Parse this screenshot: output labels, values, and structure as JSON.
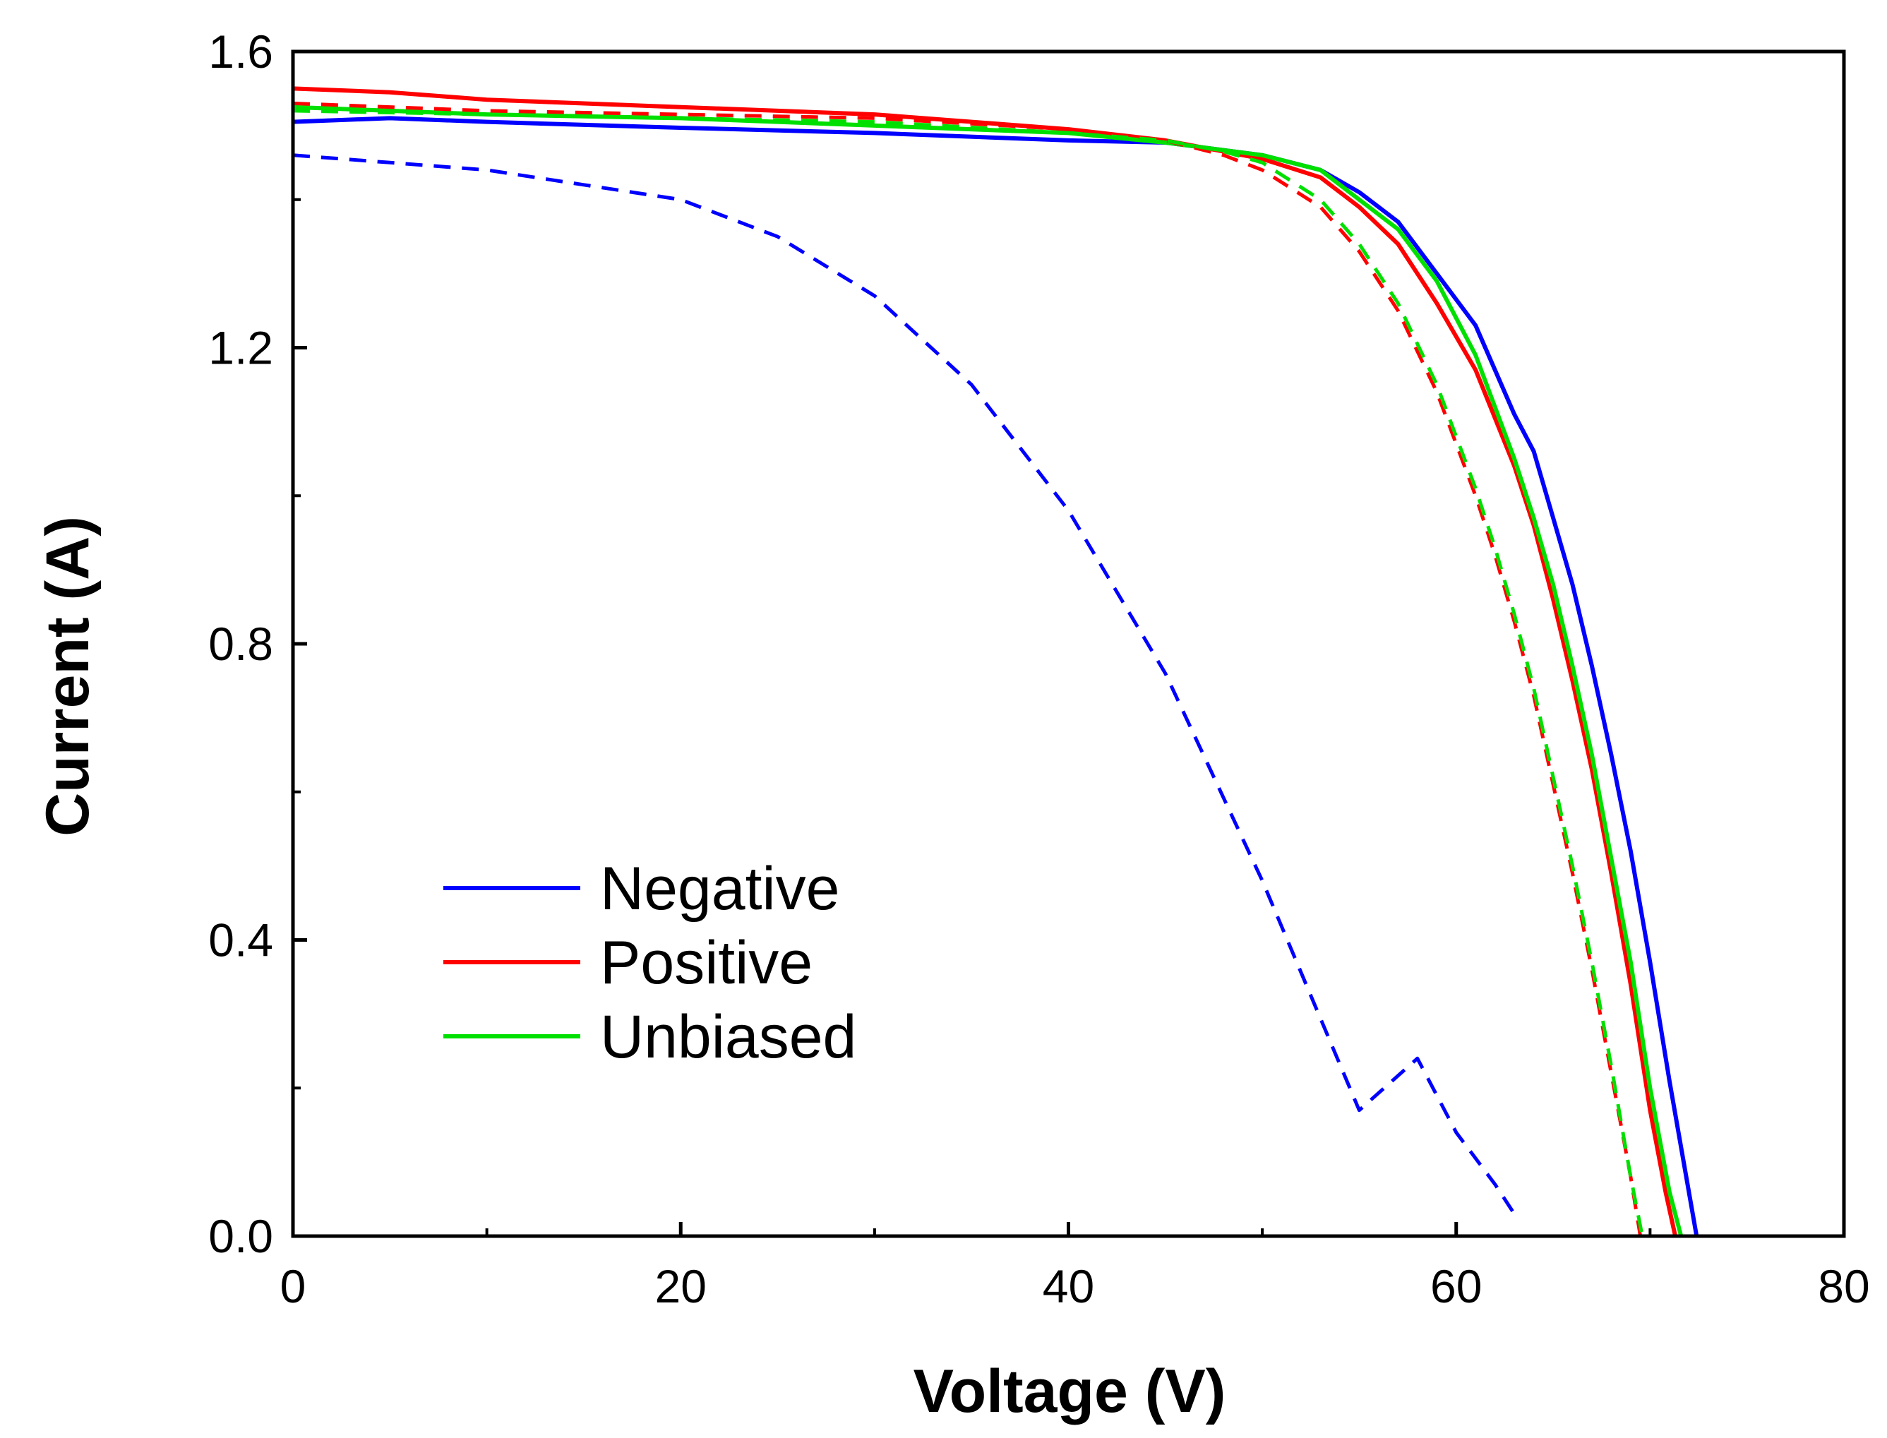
{
  "chart_data": {
    "type": "line",
    "title": "",
    "xlabel": "Voltage (V)",
    "ylabel": "Current (A)",
    "xlim": [
      0,
      80
    ],
    "ylim": [
      0,
      1.6
    ],
    "x_major_ticks": [
      0,
      20,
      40,
      60,
      80
    ],
    "x_minor_ticks": [
      10,
      30,
      50,
      70
    ],
    "y_major_ticks": [
      0.0,
      0.4,
      0.8,
      1.2,
      1.6
    ],
    "y_minor_ticks": [
      0.2,
      0.6,
      1.0,
      1.4
    ],
    "x_tick_labels": [
      "0",
      "20",
      "40",
      "60",
      "80"
    ],
    "y_tick_labels": [
      "0.0",
      "0.4",
      "0.8",
      "1.2",
      "1.6"
    ],
    "grid": false,
    "legend_position": "bottom-left",
    "legend": [
      {
        "name": "Negative",
        "color": "#0000ff"
      },
      {
        "name": "Positive",
        "color": "#ff0000"
      },
      {
        "name": "Unbiased",
        "color": "#00e000"
      }
    ],
    "series": [
      {
        "name": "Negative",
        "color": "#0000ff",
        "style": "solid",
        "x": [
          0,
          5,
          10,
          20,
          30,
          40,
          45,
          50,
          53,
          55,
          57,
          59,
          61,
          63,
          64,
          65,
          66,
          67,
          68,
          69,
          70,
          71,
          71.8,
          72.2,
          72.4
        ],
        "y": [
          1.505,
          1.51,
          1.505,
          1.497,
          1.49,
          1.48,
          1.477,
          1.46,
          1.44,
          1.41,
          1.37,
          1.3,
          1.23,
          1.11,
          1.06,
          0.97,
          0.88,
          0.77,
          0.65,
          0.52,
          0.37,
          0.21,
          0.09,
          0.03,
          0.0
        ]
      },
      {
        "name": "Positive",
        "color": "#ff0000",
        "style": "solid",
        "x": [
          0,
          5,
          10,
          20,
          30,
          40,
          45,
          47,
          50,
          53,
          55,
          57,
          59,
          61,
          63,
          64,
          65,
          66,
          67,
          68,
          69,
          70,
          70.8,
          71.3
        ],
        "y": [
          1.55,
          1.545,
          1.535,
          1.525,
          1.515,
          1.495,
          1.48,
          1.47,
          1.455,
          1.43,
          1.39,
          1.34,
          1.26,
          1.17,
          1.04,
          0.96,
          0.86,
          0.75,
          0.63,
          0.49,
          0.34,
          0.17,
          0.06,
          0.0
        ]
      },
      {
        "name": "Unbiased",
        "color": "#00e000",
        "style": "solid",
        "x": [
          0,
          5,
          10,
          20,
          30,
          40,
          45,
          50,
          53,
          55,
          57,
          59,
          61,
          63,
          64,
          65,
          66,
          67,
          68,
          69,
          70,
          71,
          71.6
        ],
        "y": [
          1.525,
          1.52,
          1.515,
          1.51,
          1.5,
          1.49,
          1.477,
          1.46,
          1.44,
          1.4,
          1.36,
          1.29,
          1.19,
          1.05,
          0.97,
          0.88,
          0.77,
          0.65,
          0.51,
          0.37,
          0.2,
          0.06,
          0.0
        ]
      },
      {
        "name": "Negative (dashed)",
        "color": "#0000ff",
        "style": "dashed",
        "x": [
          0,
          5,
          10,
          15,
          20,
          25,
          30,
          35,
          40,
          45,
          50,
          55,
          58,
          60,
          62,
          63
        ],
        "y": [
          1.46,
          1.45,
          1.44,
          1.42,
          1.4,
          1.35,
          1.27,
          1.15,
          0.98,
          0.76,
          0.48,
          0.17,
          0.24,
          0.14,
          0.07,
          0.03
        ]
      },
      {
        "name": "Positive (dashed)",
        "color": "#ff0000",
        "style": "dashed",
        "x": [
          0,
          10,
          20,
          30,
          40,
          45,
          48,
          50,
          53,
          55,
          57,
          59,
          61,
          62,
          63,
          64,
          65,
          66,
          67,
          68,
          69,
          69.5
        ],
        "y": [
          1.53,
          1.52,
          1.515,
          1.51,
          1.495,
          1.48,
          1.46,
          1.44,
          1.39,
          1.33,
          1.25,
          1.14,
          1.0,
          0.92,
          0.83,
          0.73,
          0.61,
          0.49,
          0.36,
          0.22,
          0.08,
          0.0
        ]
      },
      {
        "name": "Unbiased (dashed)",
        "color": "#00e000",
        "style": "dashed",
        "x": [
          0,
          10,
          20,
          30,
          40,
          45,
          48,
          50,
          53,
          55,
          57,
          59,
          61,
          62,
          63,
          64,
          65,
          66,
          67,
          68,
          69,
          69.6
        ],
        "y": [
          1.52,
          1.515,
          1.51,
          1.505,
          1.49,
          1.48,
          1.465,
          1.45,
          1.4,
          1.34,
          1.26,
          1.15,
          1.01,
          0.93,
          0.84,
          0.74,
          0.62,
          0.5,
          0.37,
          0.23,
          0.08,
          0.0
        ]
      }
    ]
  }
}
